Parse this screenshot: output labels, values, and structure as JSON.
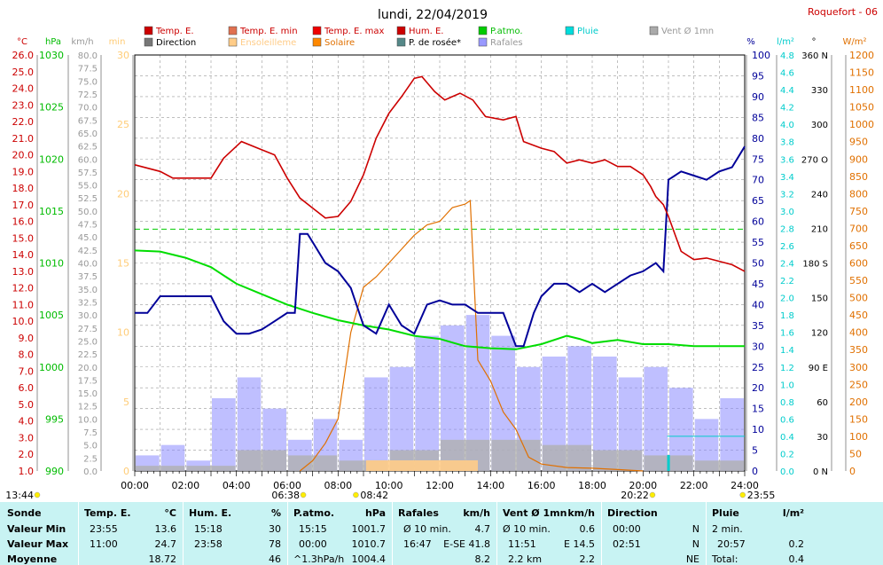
{
  "title": "lundi, 22/04/2019",
  "station": "Roquefort - 06",
  "colors": {
    "temp": "#cc0000",
    "hum": "#000099",
    "patm": "#00dd00",
    "solar": "#e07000",
    "gust": "#7a7aff",
    "wind": "#a0a0a0",
    "dew": "#5a8a8a",
    "rain": "#00cccc",
    "grid": "#888888"
  },
  "legend": [
    {
      "label": "Temp. E.",
      "color": "#cc0000"
    },
    {
      "label": "Temp. E. min",
      "color": "#e07050"
    },
    {
      "label": "Temp. E. max",
      "color": "#ee0000"
    },
    {
      "label": "Hum. E.",
      "color": "#cc0000"
    },
    {
      "label": "P.atmo.",
      "color": "#00cc00"
    },
    {
      "label": "Pluie",
      "color": "#00dddd"
    },
    {
      "label": "Vent Ø 1mn",
      "color": "#aaaaaa"
    },
    {
      "label": "Direction",
      "color": "#777777"
    },
    {
      "label": "Ensoleilleme",
      "color": "#ffcc88"
    },
    {
      "label": "Solaire",
      "color": "#ff8800"
    },
    {
      "label": "P. de rosée*",
      "color": "#558888"
    },
    {
      "label": "Rafales",
      "color": "#9999ff"
    }
  ],
  "axis_units": {
    "temp": "°C",
    "patm": "hPa",
    "wind": "km/h",
    "sun": "min",
    "hum": "%",
    "rain": "l/m²",
    "dir": "°",
    "solar": "W/m²"
  },
  "axes": {
    "temp_ticks": [
      "26.0",
      "25.0",
      "24.0",
      "23.0",
      "22.0",
      "21.0",
      "20.0",
      "19.0",
      "18.0",
      "17.0",
      "16.0",
      "15.0",
      "14.0",
      "13.0",
      "12.0",
      "11.0",
      "10.0",
      "9.0",
      "8.0",
      "7.0",
      "6.0",
      "5.0",
      "4.0",
      "3.0",
      "2.0",
      "1.0"
    ],
    "patm_ticks": [
      "1030",
      "1025",
      "1020",
      "1015",
      "1010",
      "1005",
      "1000",
      "995",
      "990"
    ],
    "wind_ticks": [
      "80.0",
      "77.5",
      "75.0",
      "72.5",
      "70.0",
      "67.5",
      "65.0",
      "62.5",
      "60.0",
      "57.5",
      "55.0",
      "52.5",
      "50.0",
      "47.5",
      "45.0",
      "42.5",
      "40.0",
      "37.5",
      "35.0",
      "32.5",
      "30.0",
      "27.5",
      "25.0",
      "22.5",
      "20.0",
      "17.5",
      "15.0",
      "12.5",
      "10.0",
      "7.5",
      "5.0",
      "2.5",
      "0.0"
    ],
    "sun_ticks": [
      "30",
      "25",
      "20",
      "15",
      "10",
      "5",
      "0"
    ],
    "hum_ticks": [
      "100",
      "95",
      "90",
      "85",
      "80",
      "75",
      "70",
      "65",
      "60",
      "55",
      "50",
      "45",
      "40",
      "35",
      "30",
      "25",
      "20",
      "15",
      "10",
      "5",
      "0"
    ],
    "rain_ticks": [
      "4.8",
      "4.6",
      "4.4",
      "4.2",
      "4.0",
      "3.8",
      "3.6",
      "3.4",
      "3.2",
      "3.0",
      "2.8",
      "2.6",
      "2.4",
      "2.2",
      "2.0",
      "1.8",
      "1.6",
      "1.4",
      "1.2",
      "1.0",
      "0.8",
      "0.6",
      "0.4",
      "0.2",
      "0.0"
    ],
    "dir_ticks": [
      "360 N",
      "330",
      "300",
      "270 O",
      "240",
      "210",
      "180 S",
      "150",
      "120",
      "90 E",
      "60",
      "30",
      "0 N"
    ],
    "solar_ticks": [
      "1200",
      "1150",
      "1100",
      "1050",
      "1000",
      "950",
      "900",
      "850",
      "800",
      "750",
      "700",
      "650",
      "600",
      "550",
      "500",
      "450",
      "400",
      "350",
      "300",
      "250",
      "200",
      "150",
      "100",
      "50",
      "0"
    ],
    "time_ticks": [
      "00:00",
      "02:00",
      "04:00",
      "06:00",
      "08:00",
      "10:00",
      "12:00",
      "14:00",
      "16:00",
      "18:00",
      "20:00",
      "22:00",
      "24:00"
    ]
  },
  "markers": {
    "sunrise": "06:38",
    "sunset": "20:22",
    "solar_max": "08:42",
    "start": "13:44",
    "end": "23:55"
  },
  "chart_data": {
    "type": "line",
    "x_unit": "hours",
    "xlim": [
      0,
      24
    ],
    "series": [
      {
        "name": "Temp. E.",
        "unit": "°C",
        "ylim": [
          1,
          26
        ],
        "x": [
          0,
          1,
          1.5,
          2,
          3,
          3.5,
          4.2,
          5,
          5.5,
          6,
          6.5,
          7,
          7.5,
          8,
          8.5,
          9,
          9.5,
          10,
          10.5,
          11,
          11.3,
          11.8,
          12.2,
          12.8,
          13.3,
          13.8,
          14.5,
          15,
          15.3,
          16,
          16.5,
          17,
          17.5,
          18,
          18.5,
          19,
          19.5,
          20,
          20.3,
          20.5,
          20.8,
          21,
          21.5,
          22,
          22.5,
          23,
          23.5,
          24
        ],
        "y": [
          19.4,
          19.0,
          18.6,
          18.6,
          18.6,
          19.8,
          20.8,
          20.3,
          20.0,
          18.6,
          17.4,
          16.8,
          16.2,
          16.3,
          17.2,
          18.8,
          21.0,
          22.5,
          23.5,
          24.6,
          24.7,
          23.8,
          23.3,
          23.7,
          23.3,
          22.3,
          22.1,
          22.3,
          20.8,
          20.4,
          20.2,
          19.5,
          19.7,
          19.5,
          19.7,
          19.3,
          19.3,
          18.8,
          18.1,
          17.5,
          17.0,
          16.3,
          14.2,
          13.7,
          13.8,
          13.6,
          13.4,
          13.0
        ]
      },
      {
        "name": "Hum. E.",
        "unit": "%",
        "ylim": [
          0,
          100
        ],
        "x": [
          0,
          0.5,
          1,
          2,
          3,
          3.5,
          4,
          4.5,
          5,
          5.5,
          6,
          6.3,
          6.5,
          6.8,
          7,
          7.5,
          8,
          8.5,
          9,
          9.5,
          10,
          10.5,
          11,
          11.5,
          12,
          12.5,
          13,
          13.5,
          14,
          14.5,
          15,
          15.3,
          15.7,
          16,
          16.5,
          17,
          17.5,
          18,
          18.5,
          19,
          19.5,
          20,
          20.5,
          20.8,
          21,
          21.5,
          22,
          22.5,
          23,
          23.5,
          24
        ],
        "y": [
          38,
          38,
          42,
          42,
          42,
          36,
          33,
          33,
          34,
          36,
          38,
          38,
          57,
          57,
          55,
          50,
          48,
          44,
          35,
          33,
          40,
          35,
          33,
          40,
          41,
          40,
          40,
          38,
          38,
          38,
          30,
          30,
          38,
          42,
          45,
          45,
          43,
          45,
          43,
          45,
          47,
          48,
          50,
          48,
          70,
          72,
          71,
          70,
          72,
          73,
          78
        ]
      },
      {
        "name": "P.atmo.",
        "unit": "hPa",
        "ylim": [
          990,
          1030
        ],
        "x": [
          0,
          1,
          2,
          3,
          4,
          5,
          6,
          7,
          8,
          9,
          10,
          11,
          12,
          13,
          14,
          15,
          16,
          17,
          17.5,
          18,
          19,
          20,
          21,
          22,
          23,
          24
        ],
        "y": [
          1011.2,
          1011.1,
          1010.5,
          1009.6,
          1008.0,
          1007.0,
          1006.0,
          1005.2,
          1004.5,
          1004.0,
          1003.6,
          1003.0,
          1002.7,
          1002.0,
          1001.8,
          1001.7,
          1002.2,
          1003.0,
          1002.7,
          1002.3,
          1002.6,
          1002.2,
          1002.2,
          1002.0,
          1002.0,
          1002.0
        ]
      },
      {
        "name": "Solaire",
        "unit": "W/m²",
        "ylim": [
          0,
          1200
        ],
        "x": [
          6.5,
          7,
          7.5,
          8,
          8.5,
          9,
          9.5,
          10,
          10.5,
          11,
          11.5,
          12,
          12.5,
          13,
          13.2,
          13.5,
          14,
          14.5,
          15,
          15.5,
          16,
          17,
          18,
          19,
          20
        ],
        "y": [
          0,
          30,
          80,
          150,
          400,
          530,
          560,
          600,
          640,
          680,
          710,
          720,
          760,
          770,
          780,
          320,
          260,
          170,
          120,
          40,
          20,
          10,
          8,
          4,
          0
        ]
      },
      {
        "name": "Rafales",
        "unit": "km/h",
        "ylim": [
          0,
          80
        ],
        "x": [
          0,
          1,
          2,
          3,
          4,
          5,
          6,
          7,
          8,
          9,
          10,
          11,
          12,
          13,
          14,
          15,
          16,
          17,
          18,
          19,
          20,
          21,
          22,
          23,
          24
        ],
        "y": [
          3,
          5,
          2,
          14,
          18,
          12,
          6,
          10,
          6,
          18,
          20,
          26,
          28,
          30,
          26,
          20,
          22,
          24,
          22,
          18,
          20,
          16,
          10,
          14,
          8
        ]
      },
      {
        "name": "Vent Ø 1mn",
        "unit": "km/h",
        "ylim": [
          0,
          80
        ],
        "x": [
          0,
          2,
          4,
          6,
          8,
          10,
          12,
          14,
          16,
          18,
          20,
          22,
          24
        ],
        "y": [
          1,
          1,
          4,
          3,
          2,
          4,
          6,
          6,
          5,
          4,
          3,
          2,
          2
        ]
      }
    ]
  },
  "summary": {
    "headers": {
      "sonde": "Sonde",
      "temp": "Temp. E.",
      "temp_unit": "°C",
      "hum": "Hum. E.",
      "hum_unit": "%",
      "patm": "P.atmo.",
      "patm_unit": "hPa",
      "raf": "Rafales",
      "raf_unit": "km/h",
      "vent": "Vent Ø 1mn",
      "vent_unit": "km/h",
      "dir": "Direction",
      "pluie": "Pluie",
      "pluie_unit": "l/m²"
    },
    "rows": [
      {
        "label": "Valeur Min",
        "temp_t": "23:55",
        "temp_v": "13.6",
        "hum_t": "15:18",
        "hum_v": "30",
        "patm_t": "15:15",
        "patm_v": "1001.7",
        "raf_t": "Ø 10 min.",
        "raf_v": "4.7",
        "vent_t": "Ø 10 min.",
        "vent_v": "0.6",
        "dir_t": "00:00",
        "dir_v": "N",
        "pluie_t": "2 min.",
        "pluie_v": ""
      },
      {
        "label": "Valeur Max",
        "temp_t": "11:00",
        "temp_v": "24.7",
        "hum_t": "23:58",
        "hum_v": "78",
        "patm_t": "00:00",
        "patm_v": "1010.7",
        "raf_t": "16:47",
        "raf_v": "E-SE 41.8",
        "vent_t": "11:51",
        "vent_v": "E 14.5",
        "dir_t": "02:51",
        "dir_v": "N",
        "pluie_t": "20:57",
        "pluie_v": "0.2"
      },
      {
        "label": "Moyenne",
        "temp_t": "",
        "temp_v": "18.72",
        "hum_t": "",
        "hum_v": "46",
        "patm_t": "^1.3hPa/h",
        "patm_v": "1004.4",
        "raf_t": "",
        "raf_v": "8.2",
        "vent_t": "2.2 km",
        "vent_v": "2.2",
        "dir_t": "",
        "dir_v": "NE",
        "pluie_t": "Total:",
        "pluie_v": "0.4"
      }
    ]
  }
}
